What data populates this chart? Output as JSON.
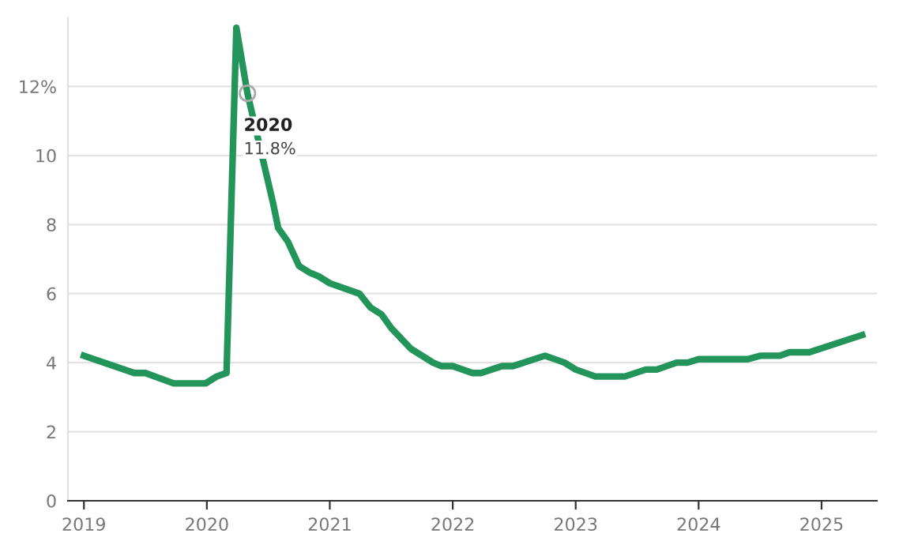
{
  "chart_data": {
    "type": "line",
    "x": [
      2019.0,
      2019.41,
      2019.5,
      2019.73,
      2019.99,
      2020.08,
      2020.16,
      2020.24,
      2020.33,
      2020.54,
      2020.58,
      2020.66,
      2020.75,
      2020.84,
      2020.91,
      2021.0,
      2021.24,
      2021.33,
      2021.42,
      2021.5,
      2021.66,
      2021.84,
      2021.91,
      2022.0,
      2022.16,
      2022.23,
      2022.4,
      2022.49,
      2022.75,
      2022.91,
      2023.0,
      2023.16,
      2023.4,
      2023.57,
      2023.66,
      2023.82,
      2023.91,
      2024.0,
      2024.4,
      2024.5,
      2024.66,
      2024.74,
      2024.9,
      2025.33
    ],
    "series": [
      {
        "color": "#23955a",
        "values": [
          4.2,
          3.7,
          3.7,
          3.4,
          3.4,
          3.6,
          3.7,
          13.7,
          11.8,
          8.6,
          7.9,
          7.5,
          6.8,
          6.6,
          6.5,
          6.3,
          6.0,
          5.6,
          5.4,
          5.0,
          4.4,
          4.0,
          3.9,
          3.9,
          3.7,
          3.7,
          3.9,
          3.9,
          4.2,
          4.0,
          3.8,
          3.6,
          3.6,
          3.8,
          3.8,
          4.0,
          4.0,
          4.1,
          4.1,
          4.2,
          4.2,
          4.3,
          4.3,
          4.8
        ]
      }
    ],
    "xlim": [
      2018.87,
      2025.45
    ],
    "ylim": [
      0,
      14
    ],
    "xticks": [
      2019,
      2020,
      2021,
      2022,
      2023,
      2024,
      2025
    ],
    "yticks": [
      0,
      2,
      4,
      6,
      8,
      10,
      {
        "value": 12,
        "label": "12%"
      }
    ],
    "grid": "y",
    "marker": "none",
    "line_style": "solid",
    "annotations": [
      {
        "text": "2020\n11.8%",
        "x": 2020.33,
        "y": 11.8
      }
    ]
  }
}
